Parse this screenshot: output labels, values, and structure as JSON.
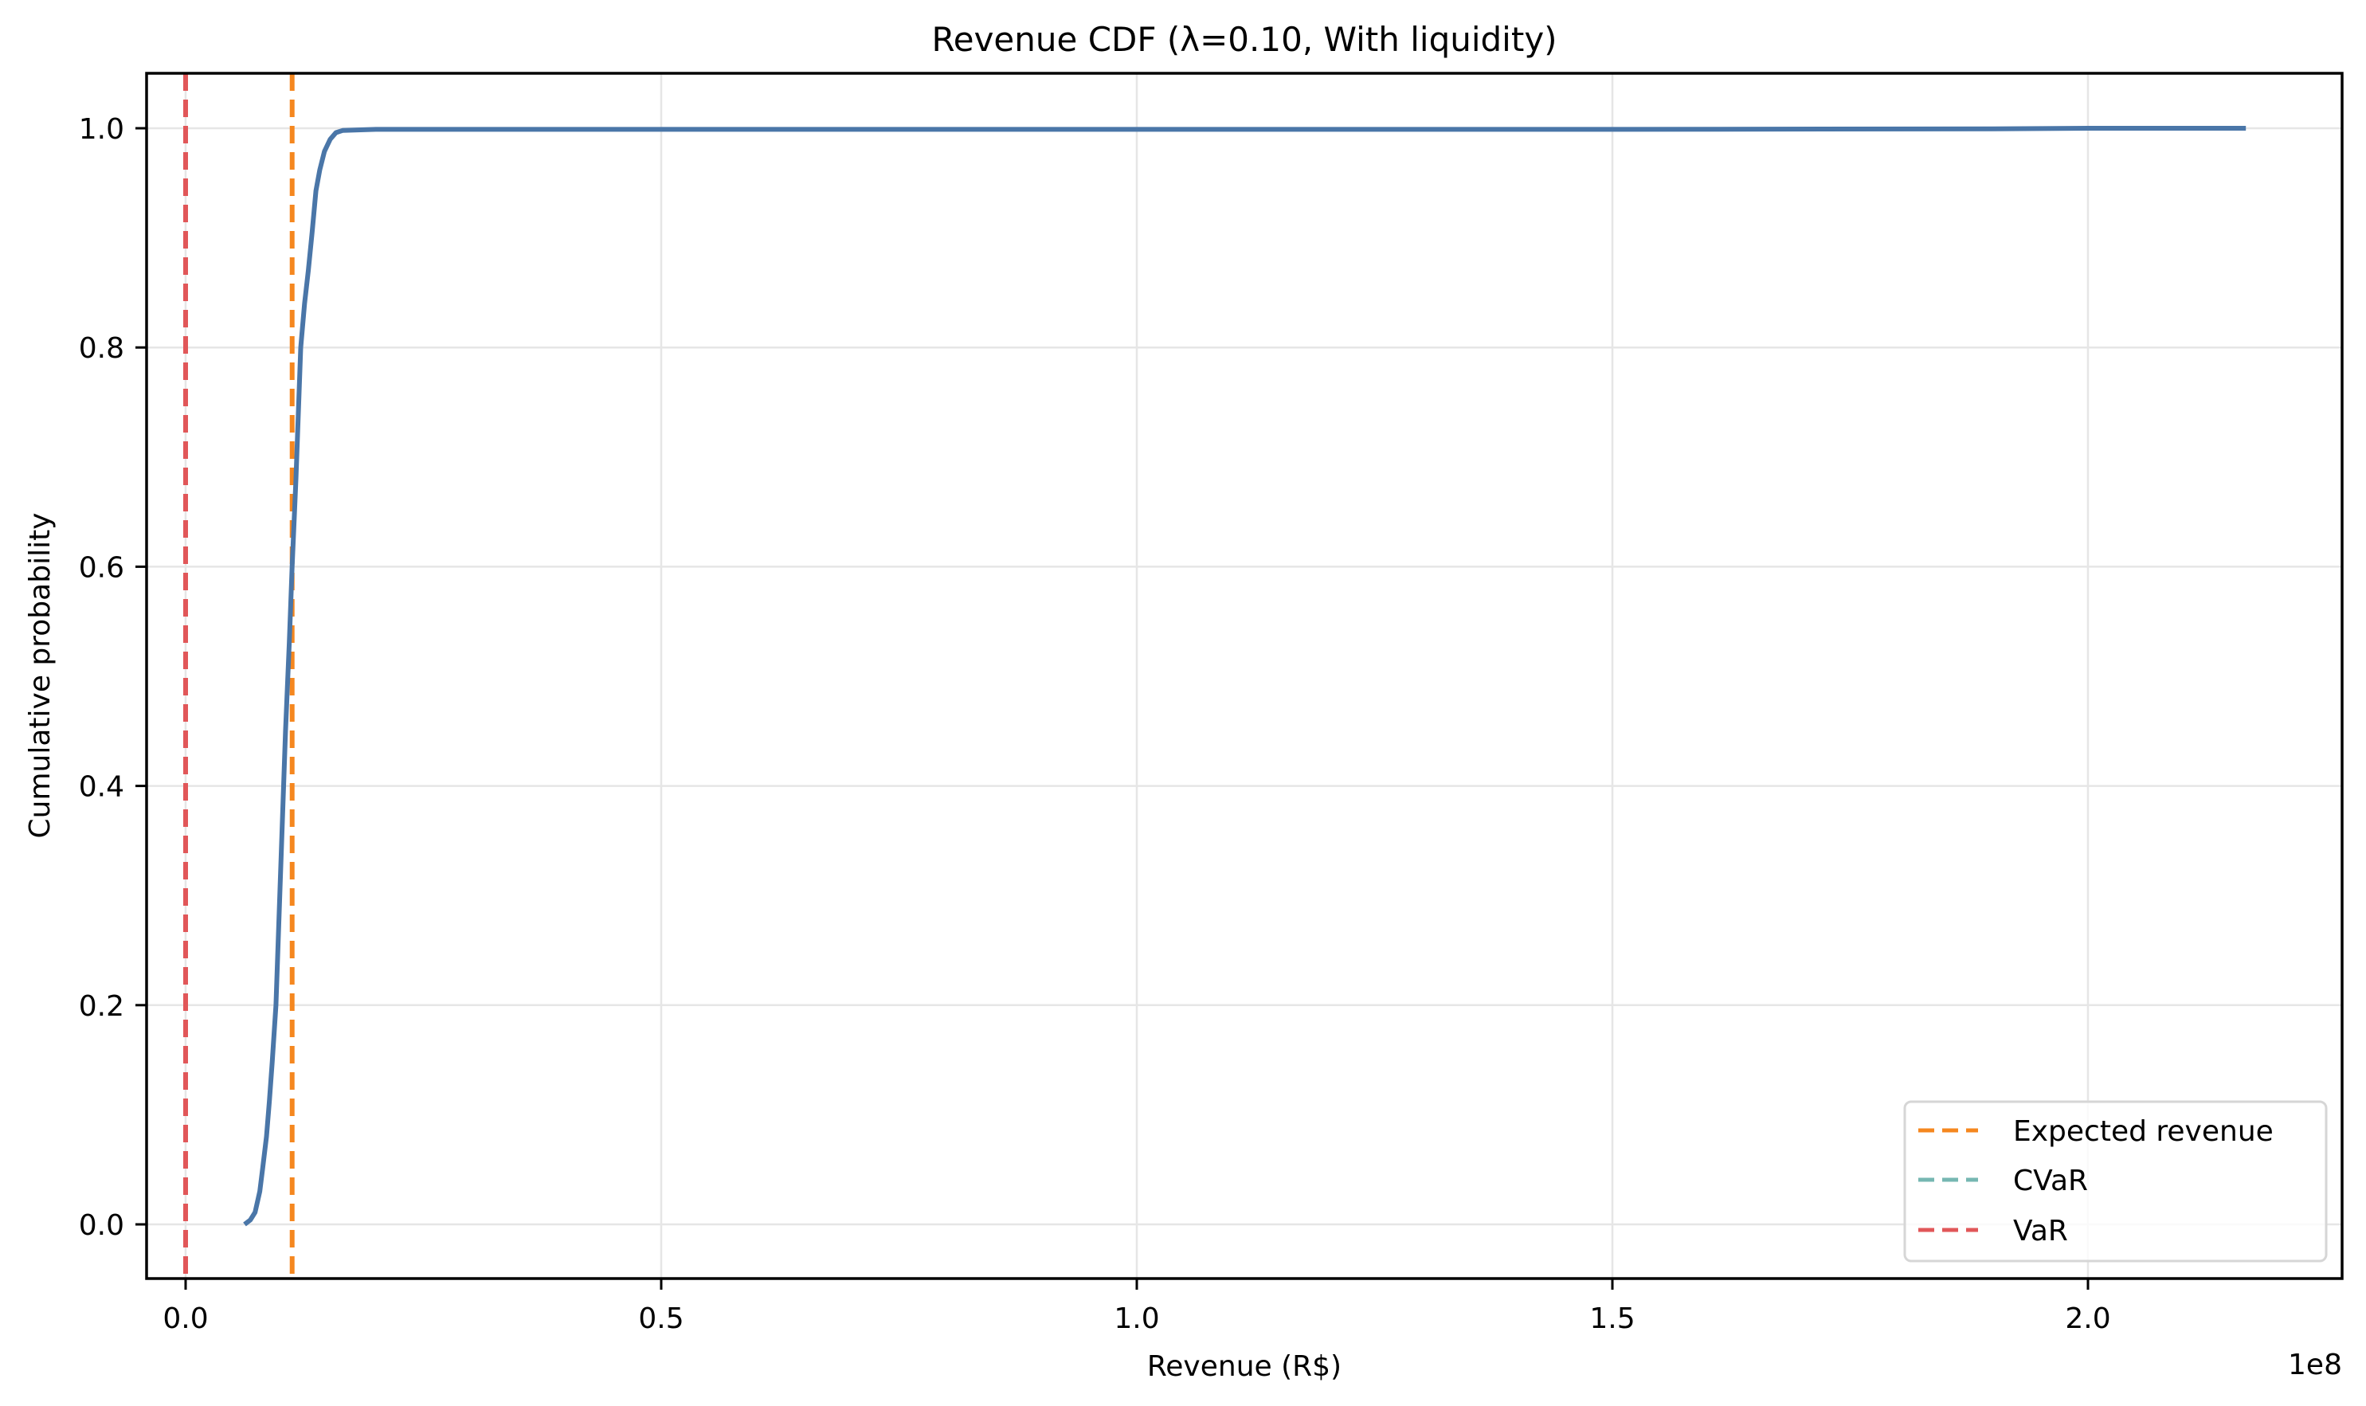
{
  "chart_data": {
    "type": "line",
    "title": "Revenue CDF (λ=0.10, With liquidity)",
    "xlabel": "Revenue (R$)",
    "ylabel": "Cumulative probability",
    "x_offset_label": "1e8",
    "x_scale": 100000000,
    "xlim": [
      -0.04,
      2.27
    ],
    "ylim": [
      -0.05,
      1.05
    ],
    "xticks": [
      0.0,
      0.5,
      1.0,
      1.5,
      2.0
    ],
    "xtick_labels": [
      "0.0",
      "0.5",
      "1.0",
      "1.5",
      "2.0"
    ],
    "yticks": [
      0.0,
      0.2,
      0.4,
      0.6,
      0.8,
      1.0
    ],
    "ytick_labels": [
      "0.0",
      "0.2",
      "0.4",
      "0.6",
      "0.8",
      "1.0"
    ],
    "grid": true,
    "legend_position": "lower right",
    "series": [
      {
        "name": "Revenue CDF",
        "style": "solid",
        "color": "#4a76a8",
        "in_legend": false,
        "x": [
          0.062,
          0.068,
          0.073,
          0.078,
          0.081,
          0.085,
          0.088,
          0.091,
          0.095,
          0.099,
          0.103,
          0.105,
          0.109,
          0.112,
          0.116,
          0.121,
          0.125,
          0.129,
          0.133,
          0.137,
          0.141,
          0.146,
          0.152,
          0.158,
          0.165,
          0.2,
          0.5,
          1.0,
          1.5,
          1.9,
          2.0,
          2.166
        ],
        "y": [
          0.0,
          0.004,
          0.011,
          0.03,
          0.051,
          0.08,
          0.112,
          0.148,
          0.2,
          0.3,
          0.4,
          0.45,
          0.53,
          0.6,
          0.68,
          0.8,
          0.84,
          0.87,
          0.905,
          0.943,
          0.962,
          0.979,
          0.99,
          0.996,
          0.998,
          0.999,
          0.999,
          0.999,
          0.999,
          0.9995,
          1.0,
          1.0
        ]
      },
      {
        "name": "Expected revenue",
        "type": "vline",
        "style": "dashed",
        "color": "#f5871f",
        "x": 0.112,
        "in_legend": true
      },
      {
        "name": "CVaR",
        "type": "vline",
        "style": "dashed",
        "color": "#76b7b2",
        "x": 0.0,
        "in_legend": true
      },
      {
        "name": "VaR",
        "type": "vline",
        "style": "dashed",
        "color": "#e15759",
        "x": 0.0,
        "in_legend": true
      }
    ]
  },
  "legend": {
    "items": [
      {
        "label": "Expected revenue",
        "color": "#f5871f"
      },
      {
        "label": "CVaR",
        "color": "#76b7b2"
      },
      {
        "label": "VaR",
        "color": "#e15759"
      }
    ]
  }
}
